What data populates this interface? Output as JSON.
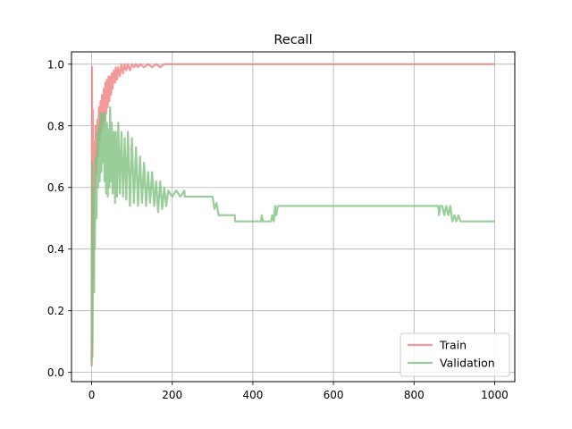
{
  "chart_data": {
    "type": "line",
    "title": "Recall",
    "xlabel": "",
    "ylabel": "",
    "xlim": [
      -50,
      1050
    ],
    "ylim": [
      -0.03,
      1.04
    ],
    "xticks": [
      0,
      200,
      400,
      600,
      800,
      1000
    ],
    "yticks": [
      0.0,
      0.2,
      0.4,
      0.6,
      0.8,
      1.0
    ],
    "xtick_labels": [
      "0",
      "200",
      "400",
      "600",
      "800",
      "1000"
    ],
    "ytick_labels": [
      "0.0",
      "0.2",
      "0.4",
      "0.6",
      "0.8",
      "1.0"
    ],
    "grid": true,
    "legend": "lower-right",
    "series": [
      {
        "name": "Train",
        "color": "#f08080",
        "points": [
          [
            0,
            0.02
          ],
          [
            1,
            0.99
          ],
          [
            2,
            0.05
          ],
          [
            3,
            0.85
          ],
          [
            4,
            0.3
          ],
          [
            5,
            0.75
          ],
          [
            6,
            0.55
          ],
          [
            7,
            0.7
          ],
          [
            8,
            0.6
          ],
          [
            10,
            0.8
          ],
          [
            12,
            0.65
          ],
          [
            14,
            0.82
          ],
          [
            16,
            0.7
          ],
          [
            18,
            0.86
          ],
          [
            20,
            0.75
          ],
          [
            22,
            0.88
          ],
          [
            24,
            0.78
          ],
          [
            26,
            0.9
          ],
          [
            28,
            0.8
          ],
          [
            30,
            0.92
          ],
          [
            32,
            0.82
          ],
          [
            34,
            0.94
          ],
          [
            36,
            0.84
          ],
          [
            38,
            0.95
          ],
          [
            40,
            0.86
          ],
          [
            42,
            0.96
          ],
          [
            44,
            0.88
          ],
          [
            46,
            0.96
          ],
          [
            48,
            0.9
          ],
          [
            50,
            0.97
          ],
          [
            52,
            0.92
          ],
          [
            55,
            0.98
          ],
          [
            58,
            0.94
          ],
          [
            60,
            0.99
          ],
          [
            63,
            0.95
          ],
          [
            66,
            0.99
          ],
          [
            70,
            0.96
          ],
          [
            74,
            1.0
          ],
          [
            78,
            0.97
          ],
          [
            82,
            1.0
          ],
          [
            86,
            0.98
          ],
          [
            90,
            1.0
          ],
          [
            95,
            0.98
          ],
          [
            100,
            1.0
          ],
          [
            105,
            0.99
          ],
          [
            110,
            1.0
          ],
          [
            115,
            0.99
          ],
          [
            120,
            1.0
          ],
          [
            130,
            0.99
          ],
          [
            140,
            1.0
          ],
          [
            150,
            0.99
          ],
          [
            160,
            1.0
          ],
          [
            170,
            0.99
          ],
          [
            180,
            1.0
          ],
          [
            1000,
            1.0
          ]
        ]
      },
      {
        "name": "Validation",
        "color": "#7fc07f",
        "points": [
          [
            0,
            0.03
          ],
          [
            1,
            0.68
          ],
          [
            2,
            0.1
          ],
          [
            3,
            0.45
          ],
          [
            4,
            0.3
          ],
          [
            5,
            0.55
          ],
          [
            6,
            0.26
          ],
          [
            7,
            0.6
          ],
          [
            8,
            0.4
          ],
          [
            10,
            0.7
          ],
          [
            12,
            0.5
          ],
          [
            14,
            0.78
          ],
          [
            16,
            0.6
          ],
          [
            18,
            0.8
          ],
          [
            20,
            0.62
          ],
          [
            22,
            0.84
          ],
          [
            24,
            0.65
          ],
          [
            26,
            0.84
          ],
          [
            28,
            0.68
          ],
          [
            30,
            0.84
          ],
          [
            32,
            0.62
          ],
          [
            34,
            0.84
          ],
          [
            36,
            0.58
          ],
          [
            38,
            0.81
          ],
          [
            40,
            0.57
          ],
          [
            42,
            0.79
          ],
          [
            44,
            0.6
          ],
          [
            46,
            0.86
          ],
          [
            48,
            0.62
          ],
          [
            50,
            0.81
          ],
          [
            52,
            0.58
          ],
          [
            55,
            0.78
          ],
          [
            58,
            0.55
          ],
          [
            60,
            0.78
          ],
          [
            63,
            0.57
          ],
          [
            66,
            0.81
          ],
          [
            70,
            0.58
          ],
          [
            74,
            0.78
          ],
          [
            78,
            0.57
          ],
          [
            82,
            0.76
          ],
          [
            86,
            0.56
          ],
          [
            90,
            0.78
          ],
          [
            95,
            0.54
          ],
          [
            100,
            0.76
          ],
          [
            105,
            0.55
          ],
          [
            110,
            0.73
          ],
          [
            115,
            0.54
          ],
          [
            120,
            0.7
          ],
          [
            125,
            0.55
          ],
          [
            130,
            0.68
          ],
          [
            135,
            0.54
          ],
          [
            140,
            0.65
          ],
          [
            145,
            0.55
          ],
          [
            150,
            0.65
          ],
          [
            155,
            0.54
          ],
          [
            160,
            0.62
          ],
          [
            165,
            0.52
          ],
          [
            170,
            0.62
          ],
          [
            175,
            0.53
          ],
          [
            180,
            0.6
          ],
          [
            185,
            0.54
          ],
          [
            190,
            0.59
          ],
          [
            200,
            0.57
          ],
          [
            210,
            0.59
          ],
          [
            220,
            0.57
          ],
          [
            230,
            0.59
          ],
          [
            231,
            0.57
          ],
          [
            300,
            0.57
          ],
          [
            305,
            0.53
          ],
          [
            310,
            0.55
          ],
          [
            315,
            0.51
          ],
          [
            320,
            0.51
          ],
          [
            355,
            0.51
          ],
          [
            356,
            0.49
          ],
          [
            420,
            0.49
          ],
          [
            422,
            0.51
          ],
          [
            425,
            0.49
          ],
          [
            445,
            0.49
          ],
          [
            448,
            0.51
          ],
          [
            452,
            0.49
          ],
          [
            455,
            0.54
          ],
          [
            458,
            0.51
          ],
          [
            462,
            0.54
          ],
          [
            860,
            0.54
          ],
          [
            862,
            0.51
          ],
          [
            865,
            0.54
          ],
          [
            870,
            0.54
          ],
          [
            875,
            0.51
          ],
          [
            880,
            0.54
          ],
          [
            885,
            0.51
          ],
          [
            890,
            0.54
          ],
          [
            895,
            0.49
          ],
          [
            900,
            0.51
          ],
          [
            905,
            0.49
          ],
          [
            910,
            0.51
          ],
          [
            915,
            0.49
          ],
          [
            1000,
            0.49
          ]
        ]
      }
    ]
  }
}
